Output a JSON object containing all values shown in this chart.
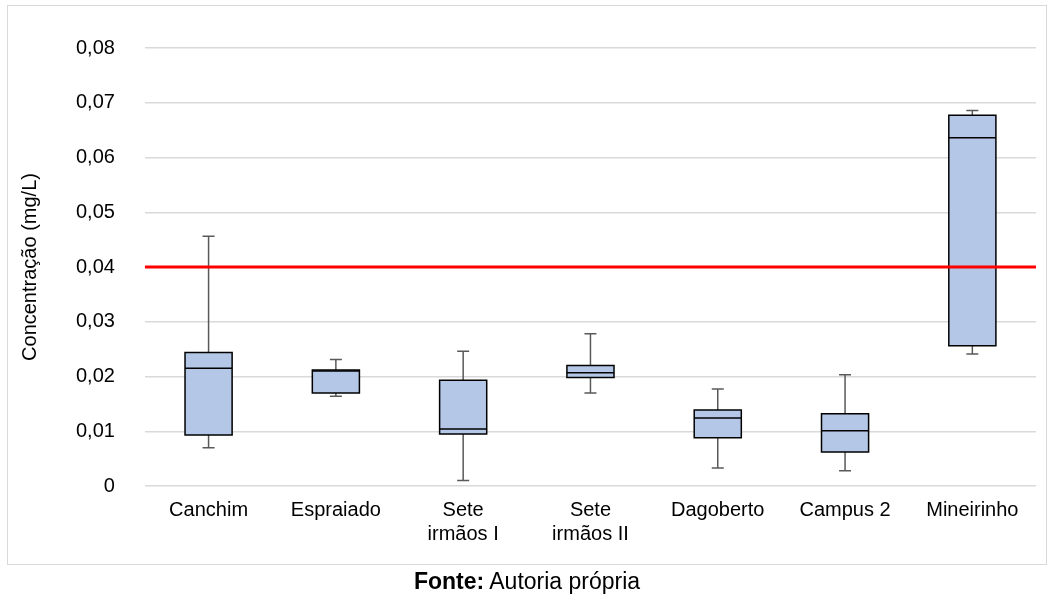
{
  "chart_data": {
    "type": "box",
    "ylabel": "Concentração (mg/L)",
    "categories": [
      "Canchim",
      "Espraiado",
      "Sete irmãos I",
      "Sete irmãos II",
      "Dagoberto",
      "Campus 2",
      "Mineirinho"
    ],
    "boxes": [
      {
        "low": 0.007,
        "q1": 0.0093,
        "median": 0.0215,
        "q3": 0.0244,
        "high": 0.0456
      },
      {
        "low": 0.0164,
        "q1": 0.017,
        "median": 0.021,
        "q3": 0.0212,
        "high": 0.0231
      },
      {
        "low": 0.001,
        "q1": 0.0095,
        "median": 0.0104,
        "q3": 0.0193,
        "high": 0.0246
      },
      {
        "low": 0.017,
        "q1": 0.0198,
        "median": 0.0207,
        "q3": 0.022,
        "high": 0.0278
      },
      {
        "low": 0.0033,
        "q1": 0.0088,
        "median": 0.0124,
        "q3": 0.0139,
        "high": 0.0177
      },
      {
        "low": 0.0028,
        "q1": 0.0062,
        "median": 0.0101,
        "q3": 0.0132,
        "high": 0.0203
      },
      {
        "low": 0.0241,
        "q1": 0.0256,
        "median": 0.0636,
        "q3": 0.0677,
        "high": 0.0686
      }
    ],
    "color": "#b4c7e7",
    "ylim": [
      0,
      0.08
    ],
    "yticks": [
      {
        "value": 0,
        "label": "0"
      },
      {
        "value": 0.01,
        "label": "0,01"
      },
      {
        "value": 0.02,
        "label": "0,02"
      },
      {
        "value": 0.03,
        "label": "0,03"
      },
      {
        "value": 0.04,
        "label": "0,04"
      },
      {
        "value": 0.05,
        "label": "0,05"
      },
      {
        "value": 0.06,
        "label": "0,06"
      },
      {
        "value": 0.07,
        "label": "0,07"
      },
      {
        "value": 0.08,
        "label": "0,08"
      }
    ],
    "grid": "y",
    "legend": false,
    "ref_lines": [
      {
        "axis": "y",
        "value": 0.04,
        "color": "#ff0000"
      }
    ],
    "annotations": [
      "Fonte: Autoria própria"
    ]
  }
}
